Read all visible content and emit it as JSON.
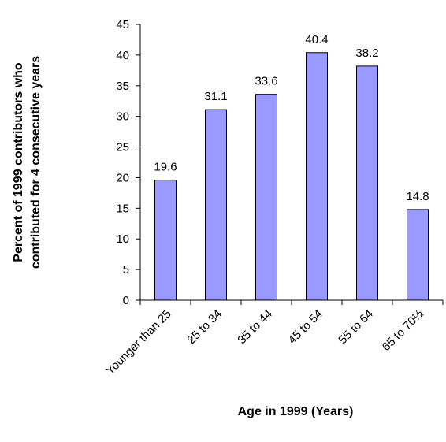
{
  "chart_data": {
    "type": "bar",
    "x_label": "Age in 1999 (Years)",
    "y_label": [
      "Percent of 1999 contributors who",
      "contributed for 4 consecutive years"
    ],
    "categories": [
      "Younger than 25",
      "25 to 34",
      "35 to 44",
      "45 to 54",
      "55 to 64",
      "65 to 70½"
    ],
    "values": [
      19.6,
      31.1,
      33.6,
      40.4,
      38.2,
      14.8
    ],
    "color": "#9999ff",
    "ylim": [
      0,
      45
    ],
    "yticks": [
      0,
      5,
      10,
      15,
      20,
      25,
      30,
      35,
      40,
      45
    ],
    "grid": false
  }
}
